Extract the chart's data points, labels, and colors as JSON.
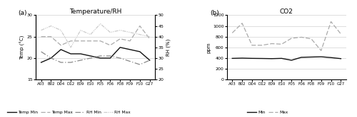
{
  "categories": [
    "A03",
    "B02",
    "D04",
    "D12",
    "E09",
    "E10",
    "F05",
    "F06",
    "F08",
    "F09",
    "F10",
    "G27"
  ],
  "temp_min": [
    19.0,
    20.0,
    22.0,
    21.0,
    21.0,
    20.5,
    20.0,
    20.0,
    22.5,
    22.0,
    21.5,
    19.5
  ],
  "temp_max": [
    25.0,
    25.0,
    23.0,
    24.0,
    24.0,
    24.0,
    24.0,
    23.0,
    24.5,
    24.0,
    27.5,
    24.5
  ],
  "rh_min": [
    33.0,
    30.0,
    28.0,
    28.0,
    29.0,
    30.0,
    31.0,
    31.0,
    30.0,
    28.5,
    27.0,
    29.0
  ],
  "rh_max": [
    43.0,
    45.0,
    43.0,
    35.0,
    43.0,
    41.0,
    46.0,
    42.0,
    43.0,
    42.0,
    41.0,
    40.0
  ],
  "co2_min": [
    395,
    400,
    395,
    393,
    390,
    395,
    360,
    415,
    420,
    425,
    410,
    390
  ],
  "co2_max": [
    870,
    1050,
    640,
    640,
    670,
    660,
    770,
    790,
    760,
    540,
    1080,
    850
  ],
  "title_left": "Temperature/RH",
  "title_right": "CO2",
  "ylabel_left": "Temp (°C)",
  "ylabel_right": "RH (%)",
  "ylabel_right2": "ppm",
  "ylim_temp": [
    15,
    30
  ],
  "ylim_rh": [
    20,
    50
  ],
  "ylim_co2": [
    0,
    1200
  ],
  "yticks_temp": [
    15,
    20,
    25,
    30
  ],
  "yticks_rh": [
    20,
    25,
    30,
    35,
    40,
    45,
    50
  ],
  "yticks_co2": [
    0,
    200,
    400,
    600,
    800,
    1000,
    1200
  ],
  "color_temp_min": "#111111",
  "color_temp_max": "#aaaaaa",
  "color_rh_min": "#888888",
  "color_rh_max": "#cccccc",
  "color_co2_min": "#111111",
  "color_co2_max": "#aaaaaa",
  "legend_left": [
    "Temp Min",
    "Temp Max",
    "RH Min",
    "RH Max"
  ],
  "legend_right": [
    "Min",
    "Max"
  ],
  "label_a": "(a)",
  "label_b": "(b)"
}
